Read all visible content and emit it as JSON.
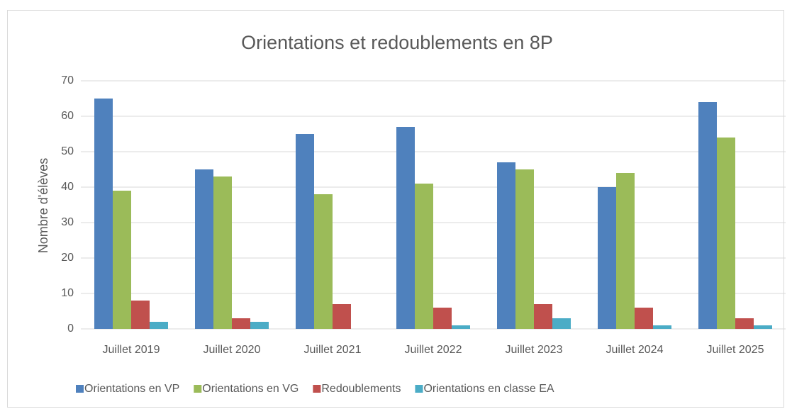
{
  "chart_data": {
    "type": "bar",
    "title": "Orientations et redoublements en 8P",
    "y_label": "Nombre d'élèves",
    "categories": [
      "Juillet 2019",
      "Juillet 2020",
      "Juillet 2021",
      "Juillet 2022",
      "Juillet 2023",
      "Juillet 2024",
      "Juillet 2025"
    ],
    "series": [
      {
        "name": "Orientations en VP",
        "color": "#4f81bd",
        "values": [
          65,
          45,
          55,
          57,
          47,
          40,
          64
        ]
      },
      {
        "name": "Orientations en VG",
        "color": "#9bbb59",
        "values": [
          39,
          43,
          38,
          41,
          45,
          44,
          54
        ]
      },
      {
        "name": "Redoublements",
        "color": "#c0504d",
        "values": [
          8,
          3,
          7,
          6,
          7,
          6,
          3
        ]
      },
      {
        "name": "Orientations en classe EA",
        "color": "#4bacc6",
        "values": [
          2,
          2,
          0,
          1,
          3,
          1,
          1
        ]
      }
    ],
    "ylim": [
      0,
      70
    ],
    "yticks": [
      0,
      10,
      20,
      30,
      40,
      50,
      60,
      70
    ],
    "grid": true,
    "legend": "bottom"
  }
}
